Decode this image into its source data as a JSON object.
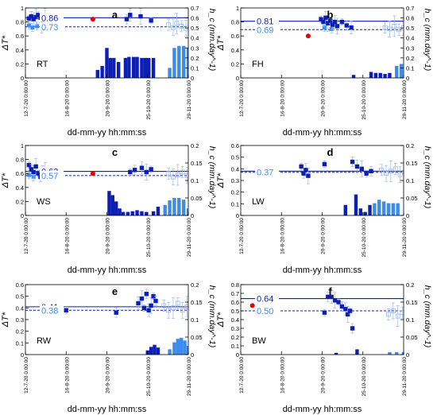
{
  "figure": {
    "x_tick_labels": [
      "12-7-20 0:00:00",
      "16-8-20 0:00:00",
      "20-9-20 0:00:00",
      "25-10-20 0:00:00",
      "29-11-20 0:00:00"
    ],
    "x_axis_label": "dd-mm-yy hh:mm:ss",
    "left_axis_label": "ΔT*",
    "right_axis_label": "h_c (mm.day^-1)",
    "colors": {
      "dark": "#0c1eb4",
      "light": "#3c8cf0",
      "faint": "#98b8ea",
      "red": "#e60000"
    }
  },
  "chart_data": [
    {
      "type": "scatter",
      "panel": "a",
      "site": "RT",
      "left_ylim": [
        0,
        1
      ],
      "left_ticks": [
        "0",
        "0.2",
        "0.4",
        "0.6",
        "0.8",
        "1"
      ],
      "right_ylim": [
        0,
        0.7
      ],
      "right_ticks": [
        "0",
        "0.1",
        "0.2",
        "0.3",
        "0.4",
        "0.5",
        "0.6",
        "0.7"
      ],
      "mean_dark": "0.86",
      "mean_light": "0.73",
      "points_dark": [
        [
          3,
          0.85
        ],
        [
          5,
          0.88
        ],
        [
          7,
          0.84
        ],
        [
          9,
          0.87
        ],
        [
          11,
          0.9
        ],
        [
          13,
          0.86
        ],
        [
          15,
          0.83
        ],
        [
          17,
          0.88
        ],
        [
          19,
          0.85
        ],
        [
          87,
          0.84
        ],
        [
          90,
          0.9
        ],
        [
          99,
          0.88
        ],
        [
          108,
          0.82
        ]
      ],
      "points_light": [
        [
          3,
          0.75
        ],
        [
          6,
          0.72
        ],
        [
          10,
          0.74
        ],
        [
          14,
          0.7
        ],
        [
          18,
          0.73
        ]
      ],
      "points_open": [
        [
          123,
          0.76
        ],
        [
          127,
          0.72
        ],
        [
          130,
          0.78
        ],
        [
          134,
          0.74
        ],
        [
          138,
          0.71
        ],
        [
          142,
          0.77
        ],
        [
          146,
          0.73
        ],
        [
          150,
          0.75
        ],
        [
          154,
          0.7
        ],
        [
          158,
          0.68
        ]
      ],
      "red_points": [
        [
          58,
          0.84
        ]
      ],
      "bars_dark": [
        [
          62,
          0.08
        ],
        [
          66,
          0.12
        ],
        [
          70,
          0.3
        ],
        [
          73,
          0.2
        ],
        [
          76,
          0.2
        ],
        [
          80,
          0.16
        ],
        [
          86,
          0.2
        ],
        [
          89,
          0.21
        ],
        [
          93,
          0.21
        ],
        [
          96,
          0.21
        ],
        [
          100,
          0.2
        ],
        [
          103,
          0.2
        ],
        [
          106,
          0.2
        ],
        [
          110,
          0.2
        ]
      ],
      "bars_light": [
        [
          124,
          0.1
        ],
        [
          128,
          0.3
        ],
        [
          132,
          0.32
        ],
        [
          136,
          0.32
        ],
        [
          140,
          0.3
        ],
        [
          144,
          0.1
        ]
      ]
    },
    {
      "type": "scatter",
      "panel": "b",
      "site": "FH",
      "left_ylim": [
        0,
        1
      ],
      "left_ticks": [
        "0",
        "0.2",
        "0.4",
        "0.6",
        "0.8",
        "1"
      ],
      "right_ylim": [
        0,
        0.7
      ],
      "right_ticks": [
        "0",
        "0.1",
        "0.2",
        "0.3",
        "0.4",
        "0.5",
        "0.6",
        "0.7"
      ],
      "mean_dark": "0.81",
      "mean_light": "0.69",
      "points_dark": [
        [
          69,
          0.84
        ],
        [
          71,
          0.8
        ],
        [
          73,
          0.86
        ],
        [
          75,
          0.78
        ],
        [
          77,
          0.82
        ],
        [
          79,
          0.76
        ],
        [
          81,
          0.8
        ],
        [
          83,
          0.74
        ],
        [
          87,
          0.8
        ],
        [
          91,
          0.75
        ],
        [
          95,
          0.72
        ]
      ],
      "points_light": [
        [
          72,
          0.72
        ],
        [
          78,
          0.7
        ]
      ],
      "points_open": [
        [
          124,
          0.72
        ],
        [
          128,
          0.7
        ],
        [
          132,
          0.74
        ],
        [
          136,
          0.69
        ],
        [
          140,
          0.72
        ],
        [
          144,
          0.68
        ],
        [
          148,
          0.71
        ],
        [
          152,
          0.66
        ],
        [
          156,
          0.62
        ]
      ],
      "red_points": [
        [
          58,
          0.6
        ]
      ],
      "bars_dark": [
        [
          97,
          0.03
        ],
        [
          112,
          0.06
        ],
        [
          116,
          0.05
        ],
        [
          120,
          0.05
        ],
        [
          124,
          0.04
        ],
        [
          128,
          0.05
        ]
      ],
      "bars_light": [
        [
          134,
          0.12
        ],
        [
          138,
          0.14
        ],
        [
          142,
          0.12
        ],
        [
          146,
          0.16
        ],
        [
          150,
          0.18
        ],
        [
          154,
          0.1
        ]
      ]
    },
    {
      "type": "scatter",
      "panel": "c",
      "site": "WS",
      "left_ylim": [
        0,
        1
      ],
      "left_ticks": [
        "0",
        "0.2",
        "0.4",
        "0.6",
        "0.8",
        "1"
      ],
      "right_ylim": [
        0,
        0.2
      ],
      "right_ticks": [
        "0",
        "0.05",
        "0.1",
        "0.15",
        "0.2"
      ],
      "mean_dark": "0.63",
      "mean_light": "0.57",
      "points_dark": [
        [
          3,
          0.72
        ],
        [
          5,
          0.66
        ],
        [
          7,
          0.62
        ],
        [
          9,
          0.7
        ],
        [
          11,
          0.6
        ],
        [
          13,
          0.55
        ],
        [
          15,
          0.62
        ],
        [
          17,
          0.64
        ],
        [
          90,
          0.62
        ],
        [
          94,
          0.65
        ],
        [
          100,
          0.68
        ],
        [
          104,
          0.62
        ],
        [
          108,
          0.66
        ]
      ],
      "points_light": [
        [
          3,
          0.58
        ],
        [
          7,
          0.55
        ],
        [
          12,
          0.59
        ]
      ],
      "points_open": [
        [
          123,
          0.6
        ],
        [
          127,
          0.55
        ],
        [
          131,
          0.58
        ],
        [
          135,
          0.62
        ],
        [
          139,
          0.57
        ],
        [
          143,
          0.54
        ],
        [
          147,
          0.56
        ],
        [
          151,
          0.6
        ],
        [
          155,
          0.58
        ],
        [
          159,
          0.55
        ]
      ],
      "red_points": [
        [
          58,
          0.6
        ]
      ],
      "bars_dark": [
        [
          72,
          0.07
        ],
        [
          75,
          0.058
        ],
        [
          78,
          0.04
        ],
        [
          81,
          0.02
        ],
        [
          84,
          0.01
        ],
        [
          88,
          0.01
        ],
        [
          92,
          0.012
        ],
        [
          96,
          0.015
        ],
        [
          100,
          0.012
        ],
        [
          104,
          0.01
        ],
        [
          110,
          0.012
        ],
        [
          114,
          0.025
        ]
      ],
      "bars_light": [
        [
          120,
          0.03
        ],
        [
          124,
          0.043
        ],
        [
          128,
          0.05
        ],
        [
          132,
          0.05
        ],
        [
          136,
          0.045
        ],
        [
          140,
          0.02
        ]
      ]
    },
    {
      "type": "scatter",
      "panel": "d",
      "site": "LW",
      "left_ylim": [
        0,
        0.6
      ],
      "left_ticks": [
        "0",
        "0.1",
        "0.2",
        "0.3",
        "0.4",
        "0.5",
        "0.6"
      ],
      "right_ylim": [
        0,
        0.2
      ],
      "right_ticks": [
        "0",
        "0.05",
        "0.1",
        "0.15",
        "0.2"
      ],
      "mean_dark": "0.38",
      "mean_light": "0.37",
      "points_dark": [
        [
          52,
          0.42
        ],
        [
          54,
          0.36
        ],
        [
          56,
          0.39
        ],
        [
          58,
          0.34
        ],
        [
          72,
          0.44
        ],
        [
          96,
          0.46
        ],
        [
          100,
          0.42
        ],
        [
          104,
          0.4
        ],
        [
          108,
          0.36
        ],
        [
          112,
          0.38
        ]
      ],
      "points_light": [],
      "points_open": [
        [
          121,
          0.39
        ],
        [
          125,
          0.36
        ],
        [
          129,
          0.38
        ],
        [
          133,
          0.4
        ],
        [
          137,
          0.35
        ],
        [
          141,
          0.37
        ],
        [
          145,
          0.36
        ],
        [
          149,
          0.38
        ],
        [
          153,
          0.34
        ],
        [
          157,
          0.37
        ]
      ],
      "red_points": [],
      "bars_dark": [
        [
          90,
          0.03
        ],
        [
          99,
          0.06
        ],
        [
          103,
          0.02
        ],
        [
          107,
          0.01
        ],
        [
          111,
          0.03
        ]
      ],
      "bars_light": [
        [
          115,
          0.035
        ],
        [
          119,
          0.045
        ],
        [
          123,
          0.04
        ],
        [
          127,
          0.035
        ],
        [
          131,
          0.035
        ],
        [
          135,
          0.035
        ]
      ]
    },
    {
      "type": "scatter",
      "panel": "e",
      "site": "RW",
      "left_ylim": [
        0,
        0.6
      ],
      "left_ticks": [
        "0",
        "0.1",
        "0.2",
        "0.3",
        "0.4",
        "0.5",
        "0.6"
      ],
      "right_ylim": [
        0,
        0.2
      ],
      "right_ticks": [
        "0",
        "0.05",
        "0.1",
        "0.15",
        "0.2"
      ],
      "mean_dark": "0.41",
      "mean_light": "0.38",
      "points_dark": [
        [
          35,
          0.38
        ],
        [
          78,
          0.36
        ],
        [
          97,
          0.44
        ],
        [
          100,
          0.48
        ],
        [
          102,
          0.4
        ],
        [
          104,
          0.52
        ],
        [
          106,
          0.38
        ],
        [
          108,
          0.42
        ],
        [
          110,
          0.5
        ],
        [
          112,
          0.46
        ]
      ],
      "points_light": [],
      "points_open": [
        [
          119,
          0.42
        ],
        [
          123,
          0.38
        ],
        [
          127,
          0.4
        ],
        [
          131,
          0.44
        ],
        [
          135,
          0.38
        ],
        [
          139,
          0.41
        ],
        [
          143,
          0.36
        ],
        [
          147,
          0.44
        ],
        [
          151,
          0.46
        ],
        [
          155,
          0.4
        ]
      ],
      "red_points": [],
      "bars_dark": [
        [
          105,
          0.012
        ],
        [
          108,
          0.022
        ],
        [
          111,
          0.028
        ],
        [
          114,
          0.02
        ]
      ],
      "bars_light": [
        [
          124,
          0.015
        ],
        [
          128,
          0.035
        ],
        [
          131,
          0.045
        ],
        [
          134,
          0.048
        ],
        [
          137,
          0.04
        ],
        [
          140,
          0.025
        ],
        [
          143,
          0.01
        ]
      ]
    },
    {
      "type": "scatter",
      "panel": "f",
      "site": "BW",
      "left_ylim": [
        0,
        0.8
      ],
      "left_ticks": [
        "0",
        "0.1",
        "0.2",
        "0.3",
        "0.4",
        "0.5",
        "0.6",
        "0.7",
        "0.8"
      ],
      "right_ylim": [
        0,
        0.2
      ],
      "right_ticks": [
        "0",
        "0.05",
        "0.1",
        "0.15",
        "0.2"
      ],
      "mean_dark": "0.64",
      "mean_light": "0.50",
      "points_dark": [
        [
          72,
          0.48
        ],
        [
          75,
          0.66
        ],
        [
          78,
          0.66
        ],
        [
          81,
          0.62
        ],
        [
          84,
          0.6
        ],
        [
          87,
          0.55
        ],
        [
          90,
          0.52
        ],
        [
          92,
          0.46
        ],
        [
          94,
          0.5
        ],
        [
          96,
          0.3
        ]
      ],
      "points_light": [],
      "points_open": [
        [
          127,
          0.46
        ],
        [
          131,
          0.5
        ],
        [
          135,
          0.44
        ],
        [
          139,
          0.48
        ],
        [
          143,
          0.52
        ],
        [
          147,
          0.46
        ],
        [
          151,
          0.5
        ],
        [
          155,
          0.48
        ]
      ],
      "red_points": [
        [
          10,
          0.56
        ]
      ],
      "bars_dark": [
        [
          82,
          0.005
        ],
        [
          100,
          0.015
        ]
      ],
      "bars_light": [
        [
          128,
          0.007
        ],
        [
          134,
          0.007
        ],
        [
          140,
          0.007
        ]
      ]
    }
  ]
}
